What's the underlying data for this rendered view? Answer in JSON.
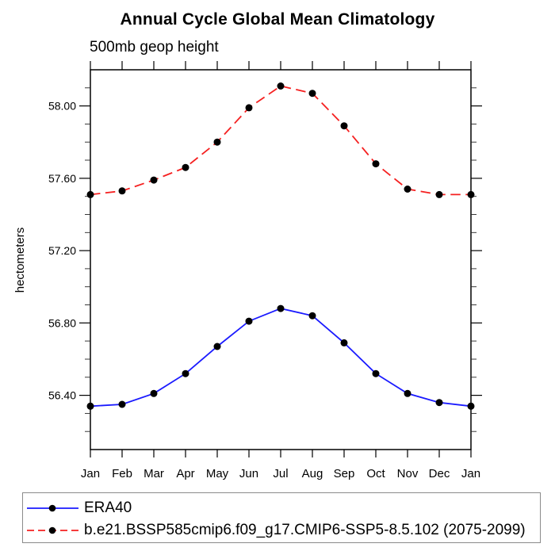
{
  "figure": {
    "title": "Annual Cycle Global Mean Climatology",
    "subtitle": "500mb geop height"
  },
  "chart_data": {
    "type": "line",
    "title": "Annual Cycle Global Mean Climatology",
    "subtitle": "500mb geop height",
    "ylabel": "hectometers",
    "categories": [
      "Jan",
      "Feb",
      "Mar",
      "Apr",
      "May",
      "Jun",
      "Jul",
      "Aug",
      "Sep",
      "Oct",
      "Nov",
      "Dec",
      "Jan"
    ],
    "series": [
      {
        "name": "ERA40",
        "color": "#1a1aff",
        "line_style": "solid",
        "marker": "circle",
        "marker_color": "#000000",
        "values": [
          56.34,
          56.35,
          56.41,
          56.52,
          56.67,
          56.81,
          56.88,
          56.84,
          56.69,
          56.52,
          56.41,
          56.36,
          56.34
        ]
      },
      {
        "name": "b.e21.BSSP585cmip6.f09_g17.CMIP6-SSP5-8.5.102 (2075-2099)",
        "color": "#f52020",
        "line_style": "dashed",
        "marker": "circle",
        "marker_color": "#000000",
        "values": [
          57.51,
          57.53,
          57.59,
          57.66,
          57.8,
          57.99,
          58.11,
          58.07,
          57.89,
          57.68,
          57.54,
          57.51,
          57.51
        ]
      }
    ],
    "ylim": [
      56.1,
      58.2
    ],
    "ytick_major": [
      56.4,
      56.8,
      57.2,
      57.6,
      58.0
    ],
    "ytick_labels": [
      "56.40",
      "56.80",
      "57.20",
      "57.60",
      "58.00"
    ],
    "ytick_minor_step": 0.1,
    "grid": false,
    "legend_position": "bottom-left"
  }
}
